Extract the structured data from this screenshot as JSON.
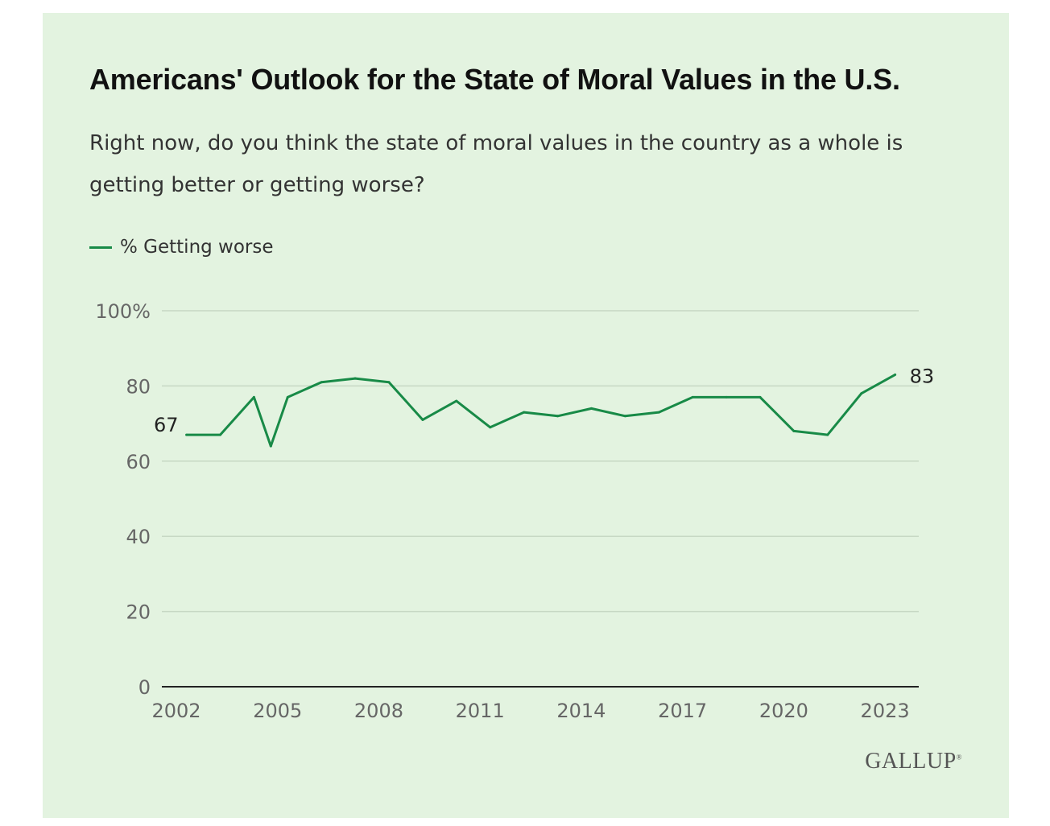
{
  "header": {
    "title": "Americans' Outlook for the State of Moral Values in the U.S.",
    "subtitle": "Right now, do you think the state of moral values in the country as a whole is getting better or getting worse?"
  },
  "brand": "GALLUP",
  "chart_data": {
    "type": "line",
    "title": "Americans' Outlook for the State of Moral Values in the U.S.",
    "xlabel": "",
    "ylabel": "",
    "x_ticks": [
      "2002",
      "2005",
      "2008",
      "2011",
      "2014",
      "2017",
      "2020",
      "2023"
    ],
    "y_ticks": [
      "100%",
      "80",
      "60",
      "40",
      "20",
      "0"
    ],
    "xlim": [
      2002,
      2024
    ],
    "ylim": [
      0,
      100
    ],
    "grid": true,
    "legend": "top-left",
    "series": [
      {
        "name": "% Getting worse",
        "color": "#188a47",
        "x": [
          2002.3,
          2003.3,
          2004.3,
          2004.8,
          2005.3,
          2006.3,
          2007.3,
          2008.3,
          2009.3,
          2010.3,
          2011.3,
          2012.3,
          2013.3,
          2014.3,
          2015.3,
          2016.3,
          2017.3,
          2018.3,
          2019.3,
          2020.3,
          2021.3,
          2022.3,
          2023.3
        ],
        "y": [
          67,
          67,
          77,
          64,
          77,
          81,
          82,
          81,
          71,
          76,
          69,
          73,
          72,
          74,
          72,
          73,
          77,
          77,
          77,
          68,
          67,
          78,
          83
        ]
      }
    ],
    "annotations": [
      {
        "text": "67",
        "point": "first"
      },
      {
        "text": "83",
        "point": "last"
      }
    ]
  }
}
